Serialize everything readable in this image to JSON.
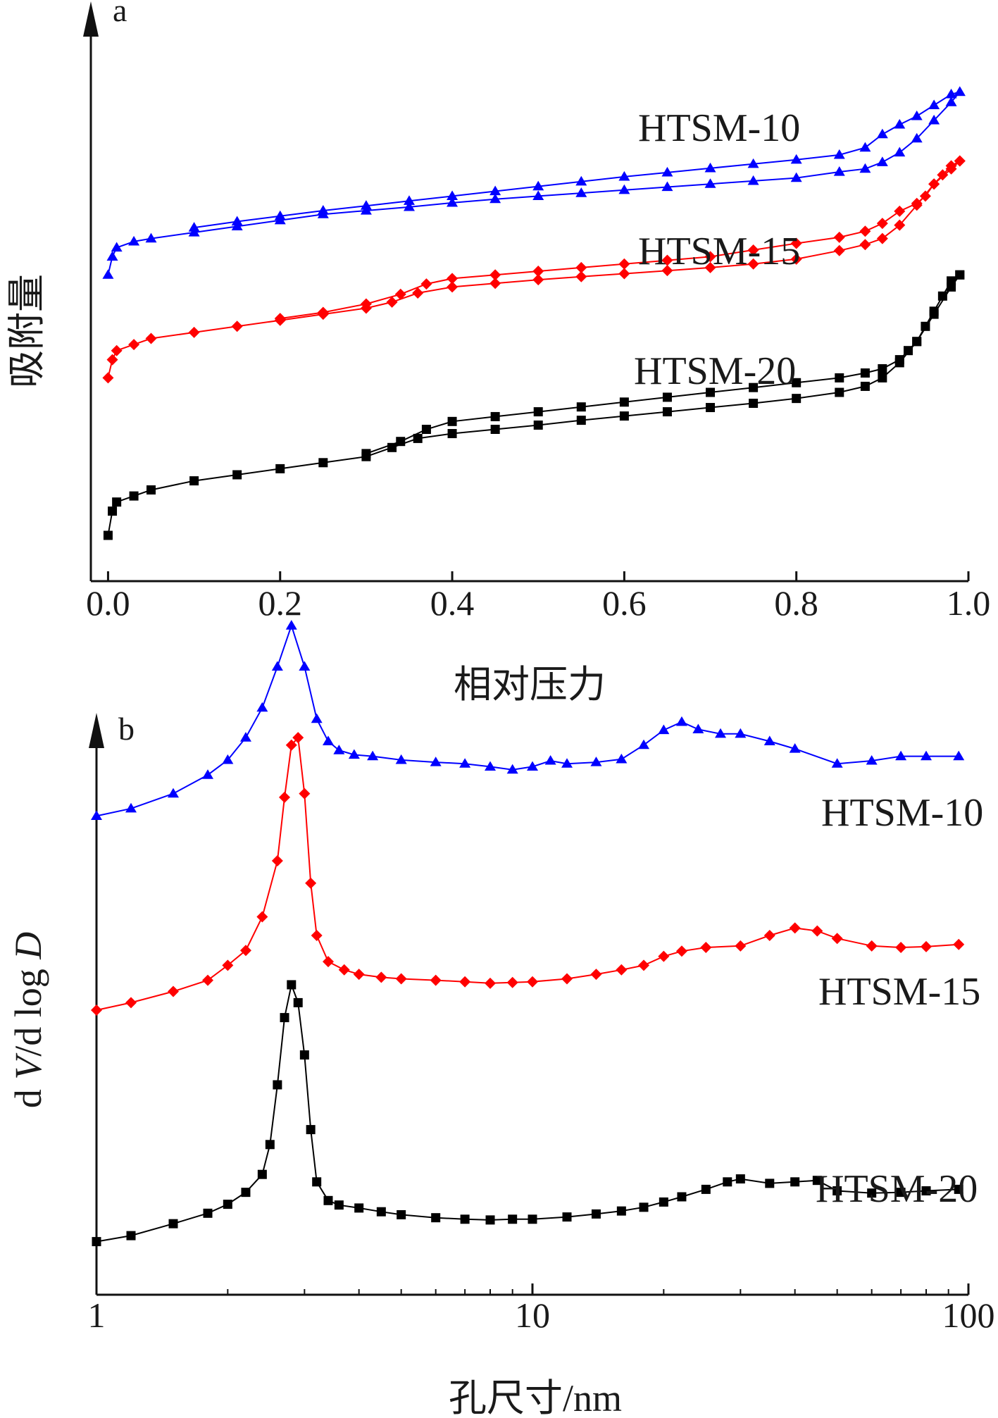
{
  "chart_data": [
    {
      "panel": "a",
      "type": "line",
      "xlabel": "相对压力",
      "ylabel": "吸附量",
      "xlim": [
        -0.02,
        1.0
      ],
      "x_ticks": [
        "0.0",
        "0.2",
        "0.4",
        "0.6",
        "0.8",
        "1.0"
      ],
      "y_ticks": "unlabeled",
      "grid": false,
      "legend": "inline labels right of curves",
      "series": [
        {
          "name": "HTSM-10",
          "color": "#0000ff",
          "marker": "triangle",
          "adsorption": {
            "x": [
              0.0,
              0.005,
              0.01,
              0.03,
              0.05,
              0.1,
              0.15,
              0.2,
              0.25,
              0.3,
              0.35,
              0.4,
              0.45,
              0.5,
              0.55,
              0.6,
              0.65,
              0.7,
              0.75,
              0.8,
              0.85,
              0.88,
              0.9,
              0.92,
              0.94,
              0.96,
              0.98,
              0.99
            ],
            "y": [
              23.0,
              26.0,
              27.5,
              28.5,
              29.0,
              30.0,
              31.0,
              32.0,
              33.0,
              33.6,
              34.2,
              34.9,
              35.5,
              36.0,
              36.5,
              37.0,
              37.5,
              38.0,
              38.5,
              39.0,
              40.0,
              40.5,
              41.6,
              43.2,
              45.5,
              48.5,
              51.5,
              53.2
            ]
          },
          "desorption": {
            "x": [
              0.99,
              0.98,
              0.96,
              0.94,
              0.92,
              0.9,
              0.88,
              0.85,
              0.8,
              0.75,
              0.7,
              0.65,
              0.6,
              0.55,
              0.5,
              0.45,
              0.4,
              0.35,
              0.3,
              0.25,
              0.2,
              0.15,
              0.1
            ],
            "y": [
              53.2,
              52.8,
              51.0,
              49.2,
              47.8,
              46.2,
              44.0,
              42.8,
              42.0,
              41.3,
              40.6,
              39.9,
              39.2,
              38.4,
              37.6,
              36.8,
              36.0,
              35.2,
              34.4,
              33.6,
              32.7,
              31.8,
              30.8
            ]
          }
        },
        {
          "name": "HTSM-15",
          "color": "#ff0000",
          "marker": "diamond",
          "adsorption": {
            "x": [
              0.0,
              0.005,
              0.01,
              0.03,
              0.05,
              0.1,
              0.15,
              0.2,
              0.25,
              0.3,
              0.33,
              0.36,
              0.4,
              0.45,
              0.5,
              0.55,
              0.6,
              0.65,
              0.7,
              0.75,
              0.8,
              0.85,
              0.88,
              0.9,
              0.92,
              0.94,
              0.96,
              0.98,
              0.99
            ],
            "y": [
              6.0,
              9.0,
              10.5,
              11.5,
              12.5,
              13.5,
              14.5,
              15.5,
              16.5,
              17.5,
              18.5,
              20.0,
              21.0,
              21.6,
              22.2,
              22.7,
              23.2,
              23.7,
              24.2,
              24.8,
              25.6,
              27.0,
              28.0,
              29.0,
              31.2,
              34.5,
              38.0,
              40.5,
              41.8
            ]
          },
          "desorption": {
            "x": [
              0.99,
              0.98,
              0.97,
              0.96,
              0.95,
              0.94,
              0.92,
              0.9,
              0.88,
              0.85,
              0.8,
              0.75,
              0.7,
              0.65,
              0.6,
              0.55,
              0.5,
              0.45,
              0.4,
              0.37,
              0.34,
              0.3,
              0.25,
              0.2
            ],
            "y": [
              41.8,
              41.0,
              39.5,
              38.0,
              36.0,
              34.8,
              33.5,
              31.5,
              30.2,
              29.2,
              28.2,
              27.1,
              26.0,
              25.4,
              24.8,
              24.2,
              23.6,
              23.0,
              22.4,
              21.5,
              19.8,
              18.2,
              16.8,
              15.8
            ]
          }
        },
        {
          "name": "HTSM-20",
          "color": "#000000",
          "marker": "square",
          "adsorption": {
            "x": [
              0.0,
              0.005,
              0.01,
              0.03,
              0.05,
              0.1,
              0.15,
              0.2,
              0.25,
              0.3,
              0.33,
              0.36,
              0.4,
              0.45,
              0.5,
              0.55,
              0.6,
              0.65,
              0.7,
              0.75,
              0.8,
              0.85,
              0.88,
              0.9,
              0.92,
              0.94,
              0.96,
              0.98,
              0.99
            ],
            "y": [
              -20.0,
              -16.0,
              -14.5,
              -13.5,
              -12.5,
              -11.0,
              -10.0,
              -9.0,
              -8.0,
              -7.0,
              -5.5,
              -4.0,
              -3.2,
              -2.5,
              -1.8,
              -1.0,
              -0.3,
              0.4,
              1.1,
              1.8,
              2.6,
              3.6,
              4.6,
              6.0,
              8.5,
              12.0,
              16.5,
              21.0,
              23.0
            ]
          },
          "desorption": {
            "x": [
              0.99,
              0.98,
              0.97,
              0.96,
              0.95,
              0.94,
              0.93,
              0.92,
              0.9,
              0.88,
              0.85,
              0.8,
              0.75,
              0.7,
              0.65,
              0.6,
              0.55,
              0.5,
              0.45,
              0.4,
              0.37,
              0.34,
              0.3
            ],
            "y": [
              23.0,
              22.0,
              19.5,
              17.0,
              14.5,
              12.0,
              10.5,
              9.0,
              7.5,
              6.8,
              6.0,
              5.2,
              4.4,
              3.6,
              2.8,
              2.0,
              1.2,
              0.4,
              -0.4,
              -1.2,
              -2.5,
              -4.5,
              -6.5
            ]
          }
        }
      ]
    },
    {
      "panel": "b",
      "type": "line",
      "xlabel": "孔尺寸/nm",
      "ylabel": "d V/d log D",
      "x_scale": "log",
      "xlim": [
        1,
        100
      ],
      "x_ticks": [
        "1",
        "10",
        "100"
      ],
      "y_ticks": "unlabeled",
      "grid": false,
      "legend": "inline labels right of curves",
      "series": [
        {
          "name": "HTSM-10",
          "color": "#0000ff",
          "marker": "triangle",
          "x": [
            1.0,
            1.2,
            1.5,
            1.8,
            2.0,
            2.2,
            2.4,
            2.6,
            2.8,
            3.0,
            3.2,
            3.4,
            3.6,
            3.9,
            4.3,
            5.0,
            6.0,
            7.0,
            8.0,
            9.0,
            10.0,
            11.0,
            12.0,
            14.0,
            16.0,
            18.0,
            20.0,
            22.0,
            24.0,
            27.0,
            30.0,
            35.0,
            40.0,
            50.0,
            60.0,
            70.0,
            80.0,
            95.0
          ],
          "y": [
            61.0,
            62.0,
            64.0,
            66.5,
            68.5,
            71.5,
            75.5,
            81.0,
            86.5,
            81.0,
            74.0,
            71.0,
            69.8,
            69.2,
            69.0,
            68.5,
            68.2,
            68.0,
            67.6,
            67.2,
            67.6,
            68.4,
            68.0,
            68.2,
            68.6,
            70.5,
            72.5,
            73.6,
            72.6,
            72.0,
            72.0,
            71.0,
            70.0,
            68.0,
            68.4,
            69.0,
            69.0,
            69.0
          ]
        },
        {
          "name": "HTSM-15",
          "color": "#ff0000",
          "marker": "diamond",
          "x": [
            1.0,
            1.2,
            1.5,
            1.8,
            2.0,
            2.2,
            2.4,
            2.6,
            2.7,
            2.8,
            2.9,
            3.0,
            3.1,
            3.2,
            3.4,
            3.7,
            4.0,
            4.5,
            5.0,
            6.0,
            7.0,
            8.0,
            9.0,
            10.0,
            12.0,
            14.0,
            16.0,
            18.0,
            20.0,
            22.0,
            25.0,
            30.0,
            35.0,
            40.0,
            45.0,
            50.0,
            60.0,
            70.0,
            80.0,
            95.0
          ],
          "y": [
            35.0,
            36.0,
            37.5,
            39.0,
            41.0,
            43.0,
            47.5,
            55.0,
            63.5,
            70.5,
            71.5,
            64.0,
            52.0,
            45.0,
            41.5,
            40.4,
            39.8,
            39.4,
            39.2,
            39.0,
            38.8,
            38.6,
            38.7,
            38.8,
            39.2,
            39.8,
            40.4,
            41.0,
            42.2,
            42.9,
            43.4,
            43.6,
            45.0,
            46.0,
            45.6,
            44.6,
            43.6,
            43.4,
            43.5,
            43.8
          ]
        },
        {
          "name": "HTSM-20",
          "color": "#000000",
          "marker": "square",
          "x": [
            1.0,
            1.2,
            1.5,
            1.8,
            2.0,
            2.2,
            2.4,
            2.5,
            2.6,
            2.7,
            2.8,
            2.9,
            3.0,
            3.1,
            3.2,
            3.4,
            3.6,
            4.0,
            4.5,
            5.0,
            6.0,
            7.0,
            8.0,
            9.0,
            10.0,
            12.0,
            14.0,
            16.0,
            18.0,
            20.0,
            22.0,
            25.0,
            28.0,
            30.0,
            35.0,
            40.0,
            45.0,
            50.0,
            60.0,
            70.0,
            80.0,
            95.0
          ],
          "y": [
            4.0,
            4.8,
            6.4,
            7.8,
            9.0,
            10.6,
            13.0,
            17.0,
            25.0,
            34.0,
            38.4,
            36.0,
            29.0,
            19.0,
            12.0,
            9.5,
            8.9,
            8.5,
            8.0,
            7.6,
            7.2,
            7.0,
            6.9,
            7.0,
            7.0,
            7.3,
            7.7,
            8.1,
            8.6,
            9.3,
            10.0,
            11.0,
            12.0,
            12.4,
            11.8,
            12.0,
            12.2,
            10.8,
            10.5,
            10.6,
            10.8,
            11.0
          ]
        }
      ]
    }
  ]
}
